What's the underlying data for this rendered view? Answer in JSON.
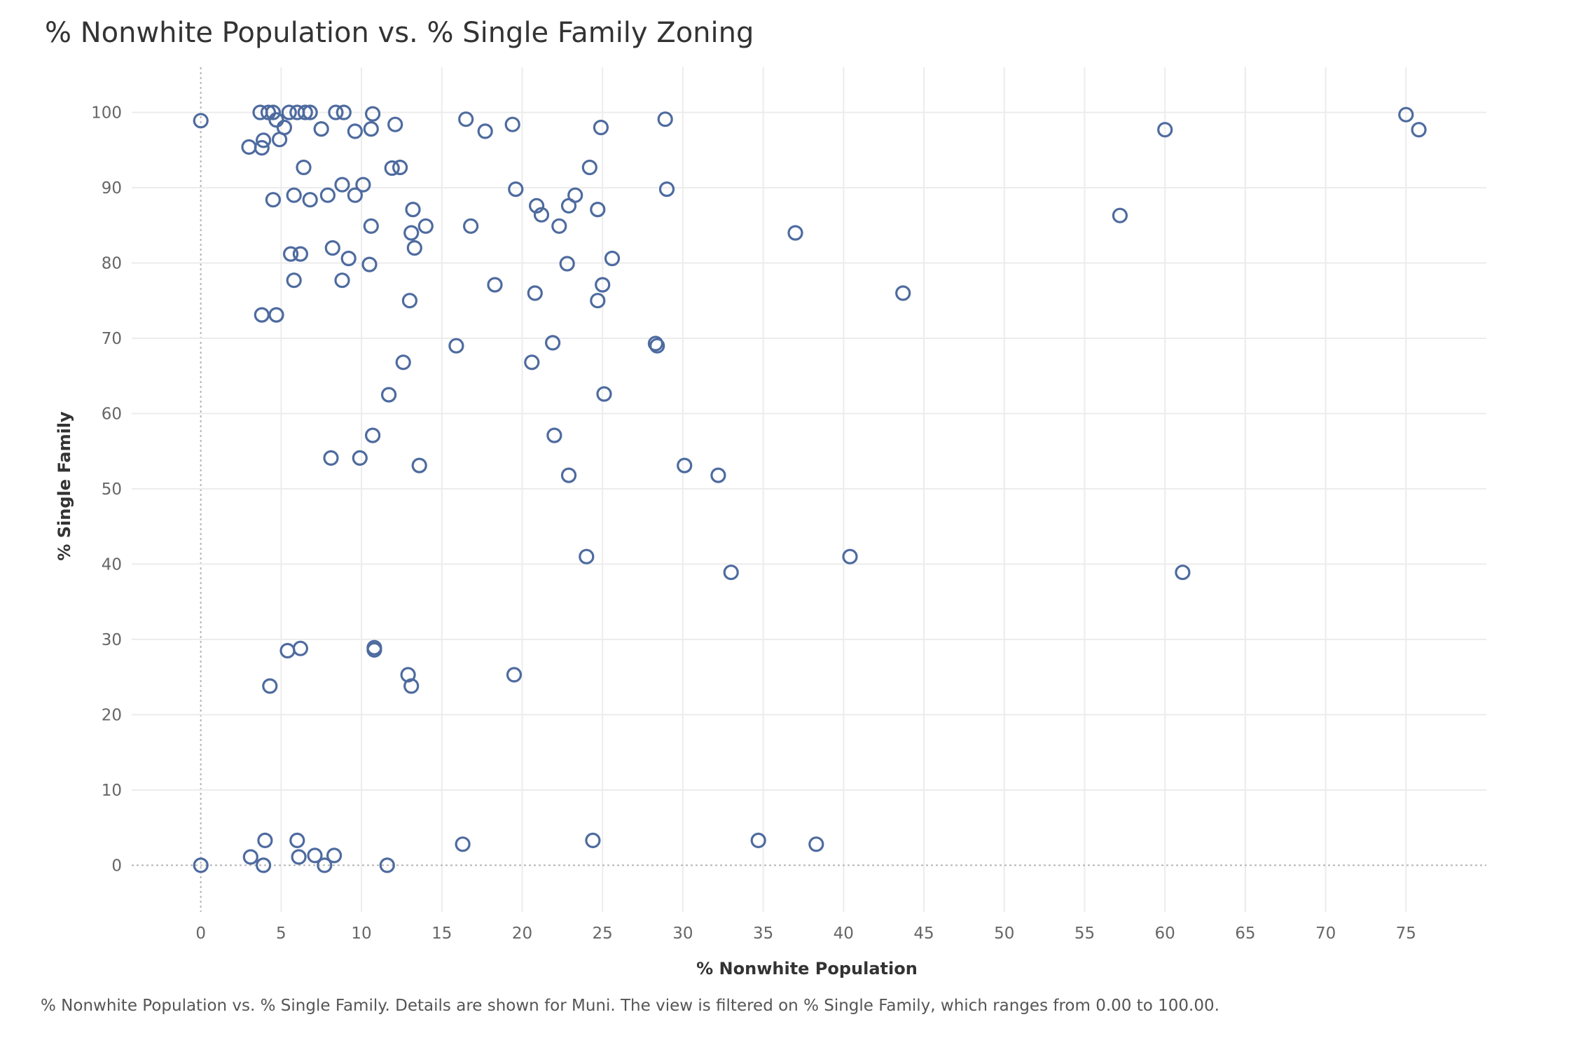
{
  "chart_data": {
    "type": "scatter",
    "title": "% Nonwhite Population vs. % Single Family Zoning",
    "xlabel": "% Nonwhite Population",
    "ylabel": "% Single Family",
    "xlim": [
      -4.3,
      80
    ],
    "ylim": [
      -6.2,
      106
    ],
    "xticks": [
      0,
      5,
      10,
      15,
      20,
      25,
      30,
      35,
      40,
      45,
      50,
      55,
      60,
      65,
      70,
      75
    ],
    "yticks": [
      0,
      10,
      20,
      30,
      40,
      50,
      60,
      70,
      80,
      90,
      100
    ],
    "grid": true,
    "legend": "none",
    "marker": "hollow-circle",
    "marker_color": "#4e6b9f",
    "points": [
      {
        "x": 0.0,
        "y": 98.9
      },
      {
        "x": 0.0,
        "y": 0.0
      },
      {
        "x": 3.7,
        "y": 100.0
      },
      {
        "x": 4.2,
        "y": 100.0
      },
      {
        "x": 4.5,
        "y": 100.0
      },
      {
        "x": 4.7,
        "y": 99.0
      },
      {
        "x": 5.2,
        "y": 98.0
      },
      {
        "x": 5.5,
        "y": 100.0
      },
      {
        "x": 6.0,
        "y": 100.0
      },
      {
        "x": 6.5,
        "y": 100.0
      },
      {
        "x": 6.8,
        "y": 100.0
      },
      {
        "x": 8.4,
        "y": 100.0
      },
      {
        "x": 8.9,
        "y": 100.0
      },
      {
        "x": 10.7,
        "y": 99.8
      },
      {
        "x": 7.5,
        "y": 97.8
      },
      {
        "x": 9.6,
        "y": 97.5
      },
      {
        "x": 10.6,
        "y": 97.8
      },
      {
        "x": 12.1,
        "y": 98.4
      },
      {
        "x": 3.9,
        "y": 96.3
      },
      {
        "x": 4.9,
        "y": 96.4
      },
      {
        "x": 3.0,
        "y": 95.4
      },
      {
        "x": 3.8,
        "y": 95.3
      },
      {
        "x": 6.4,
        "y": 92.7
      },
      {
        "x": 11.9,
        "y": 92.6
      },
      {
        "x": 12.4,
        "y": 92.7
      },
      {
        "x": 8.8,
        "y": 90.4
      },
      {
        "x": 10.1,
        "y": 90.4
      },
      {
        "x": 4.5,
        "y": 88.4
      },
      {
        "x": 5.8,
        "y": 89.0
      },
      {
        "x": 6.8,
        "y": 88.4
      },
      {
        "x": 7.9,
        "y": 89.0
      },
      {
        "x": 9.6,
        "y": 89.0
      },
      {
        "x": 10.6,
        "y": 84.9
      },
      {
        "x": 13.2,
        "y": 87.1
      },
      {
        "x": 14.0,
        "y": 84.9
      },
      {
        "x": 13.1,
        "y": 84.0
      },
      {
        "x": 13.3,
        "y": 82.0
      },
      {
        "x": 8.2,
        "y": 82.0
      },
      {
        "x": 5.6,
        "y": 81.2
      },
      {
        "x": 6.2,
        "y": 81.2
      },
      {
        "x": 9.2,
        "y": 80.6
      },
      {
        "x": 10.5,
        "y": 79.8
      },
      {
        "x": 5.8,
        "y": 77.7
      },
      {
        "x": 8.8,
        "y": 77.7
      },
      {
        "x": 13.0,
        "y": 75.0
      },
      {
        "x": 3.8,
        "y": 73.1
      },
      {
        "x": 4.7,
        "y": 73.1
      },
      {
        "x": 16.5,
        "y": 99.1
      },
      {
        "x": 17.7,
        "y": 97.5
      },
      {
        "x": 19.4,
        "y": 98.4
      },
      {
        "x": 24.9,
        "y": 98.0
      },
      {
        "x": 28.9,
        "y": 99.1
      },
      {
        "x": 24.2,
        "y": 92.7
      },
      {
        "x": 19.6,
        "y": 89.8
      },
      {
        "x": 23.3,
        "y": 89.0
      },
      {
        "x": 29.0,
        "y": 89.8
      },
      {
        "x": 20.9,
        "y": 87.6
      },
      {
        "x": 21.2,
        "y": 86.4
      },
      {
        "x": 22.9,
        "y": 87.6
      },
      {
        "x": 24.7,
        "y": 87.1
      },
      {
        "x": 16.8,
        "y": 84.9
      },
      {
        "x": 22.3,
        "y": 84.9
      },
      {
        "x": 22.8,
        "y": 79.9
      },
      {
        "x": 25.6,
        "y": 80.6
      },
      {
        "x": 18.3,
        "y": 77.1
      },
      {
        "x": 25.0,
        "y": 77.1
      },
      {
        "x": 20.8,
        "y": 76.0
      },
      {
        "x": 24.7,
        "y": 75.0
      },
      {
        "x": 15.9,
        "y": 69.0
      },
      {
        "x": 21.9,
        "y": 69.4
      },
      {
        "x": 28.3,
        "y": 69.3
      },
      {
        "x": 28.4,
        "y": 69.0
      },
      {
        "x": 12.6,
        "y": 66.8
      },
      {
        "x": 20.6,
        "y": 66.8
      },
      {
        "x": 11.7,
        "y": 62.5
      },
      {
        "x": 25.1,
        "y": 62.6
      },
      {
        "x": 10.7,
        "y": 57.1
      },
      {
        "x": 22.0,
        "y": 57.1
      },
      {
        "x": 8.1,
        "y": 54.1
      },
      {
        "x": 9.9,
        "y": 54.1
      },
      {
        "x": 13.6,
        "y": 53.1
      },
      {
        "x": 22.9,
        "y": 51.8
      },
      {
        "x": 30.1,
        "y": 53.1
      },
      {
        "x": 32.2,
        "y": 51.8
      },
      {
        "x": 24.0,
        "y": 41.0
      },
      {
        "x": 33.0,
        "y": 38.9
      },
      {
        "x": 37.0,
        "y": 84.0
      },
      {
        "x": 43.7,
        "y": 76.0
      },
      {
        "x": 40.4,
        "y": 41.0
      },
      {
        "x": 57.2,
        "y": 86.3
      },
      {
        "x": 60.0,
        "y": 97.7
      },
      {
        "x": 61.1,
        "y": 38.9
      },
      {
        "x": 75.0,
        "y": 99.7
      },
      {
        "x": 75.8,
        "y": 97.7
      },
      {
        "x": 5.4,
        "y": 28.5
      },
      {
        "x": 6.2,
        "y": 28.8
      },
      {
        "x": 10.8,
        "y": 28.9
      },
      {
        "x": 10.8,
        "y": 28.6
      },
      {
        "x": 12.9,
        "y": 25.3
      },
      {
        "x": 19.5,
        "y": 25.3
      },
      {
        "x": 4.3,
        "y": 23.8
      },
      {
        "x": 13.1,
        "y": 23.8
      },
      {
        "x": 4.0,
        "y": 3.3
      },
      {
        "x": 6.0,
        "y": 3.3
      },
      {
        "x": 16.3,
        "y": 2.8
      },
      {
        "x": 24.4,
        "y": 3.3
      },
      {
        "x": 34.7,
        "y": 3.3
      },
      {
        "x": 38.3,
        "y": 2.8
      },
      {
        "x": 3.1,
        "y": 1.1
      },
      {
        "x": 6.1,
        "y": 1.1
      },
      {
        "x": 7.1,
        "y": 1.3
      },
      {
        "x": 8.3,
        "y": 1.3
      },
      {
        "x": 3.9,
        "y": 0.0
      },
      {
        "x": 7.7,
        "y": 0.0
      },
      {
        "x": 11.6,
        "y": 0.0
      }
    ]
  },
  "footnote": "% Nonwhite Population vs. % Single Family.  Details are shown for Muni. The view is filtered on % Single Family, which ranges from 0.00 to 100.00."
}
